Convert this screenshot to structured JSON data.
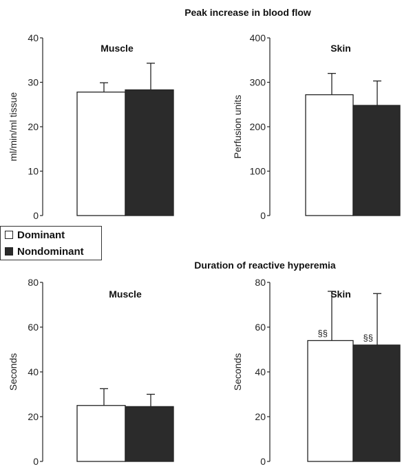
{
  "figure": {
    "section_titles": [
      "Peak increase in blood flow",
      "Duration of reactive hyperemia"
    ]
  },
  "legend": [
    {
      "label": "Dominant",
      "color": "#ffffff"
    },
    {
      "label": "Nondominant",
      "color": "#2b2b2b"
    }
  ],
  "chart_data": [
    {
      "type": "bar",
      "title": "Muscle",
      "ylabel": "ml/min/ml tissue",
      "ylim": [
        0,
        40
      ],
      "yticks": [
        0,
        10,
        20,
        30,
        40
      ],
      "categories": [
        "Dominant",
        "Nondominant"
      ],
      "values": [
        27.8,
        28.3
      ],
      "errors": [
        2.1,
        6.0
      ],
      "annotations": [
        "",
        ""
      ]
    },
    {
      "type": "bar",
      "title": "Skin",
      "ylabel": "Perfusion units",
      "ylim": [
        0,
        400
      ],
      "yticks": [
        0,
        100,
        200,
        300,
        400
      ],
      "categories": [
        "Dominant",
        "Nondominant"
      ],
      "values": [
        272,
        248
      ],
      "errors": [
        48,
        55
      ],
      "annotations": [
        "",
        ""
      ]
    },
    {
      "type": "bar",
      "title": "Muscle",
      "ylabel": "Seconds",
      "ylim": [
        0,
        80
      ],
      "yticks": [
        0,
        20,
        40,
        60,
        80
      ],
      "categories": [
        "Dominant",
        "Nondominant"
      ],
      "values": [
        25,
        24.5
      ],
      "errors": [
        7.5,
        5.5
      ],
      "annotations": [
        "",
        ""
      ]
    },
    {
      "type": "bar",
      "title": "Skin",
      "ylabel": "Seconds",
      "ylim": [
        0,
        80
      ],
      "yticks": [
        0,
        20,
        40,
        60,
        80
      ],
      "categories": [
        "Dominant",
        "Nondominant"
      ],
      "values": [
        54,
        52
      ],
      "errors": [
        22,
        23
      ],
      "annotations": [
        "§§",
        "§§"
      ]
    }
  ]
}
